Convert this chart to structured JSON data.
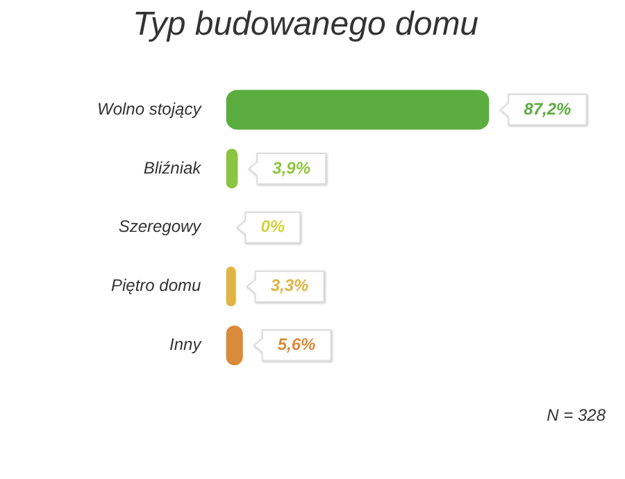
{
  "chart_data": {
    "type": "bar",
    "orientation": "horizontal",
    "title": "Typ budowanego domu",
    "categories": [
      "Wolno stojący",
      "Bliźniak",
      "Szeregowy",
      "Piętro domu",
      "Inny"
    ],
    "values": [
      87.2,
      3.9,
      0,
      3.3,
      5.6
    ],
    "value_labels": [
      "87,2%",
      "3,9%",
      "0%",
      "3,3%",
      "5,6%"
    ],
    "colors": [
      "#5cad3f",
      "#8dc43f",
      "#d2d43a",
      "#dfb443",
      "#d98b3a"
    ],
    "annotations": [
      "N = 328"
    ],
    "legend": false
  }
}
